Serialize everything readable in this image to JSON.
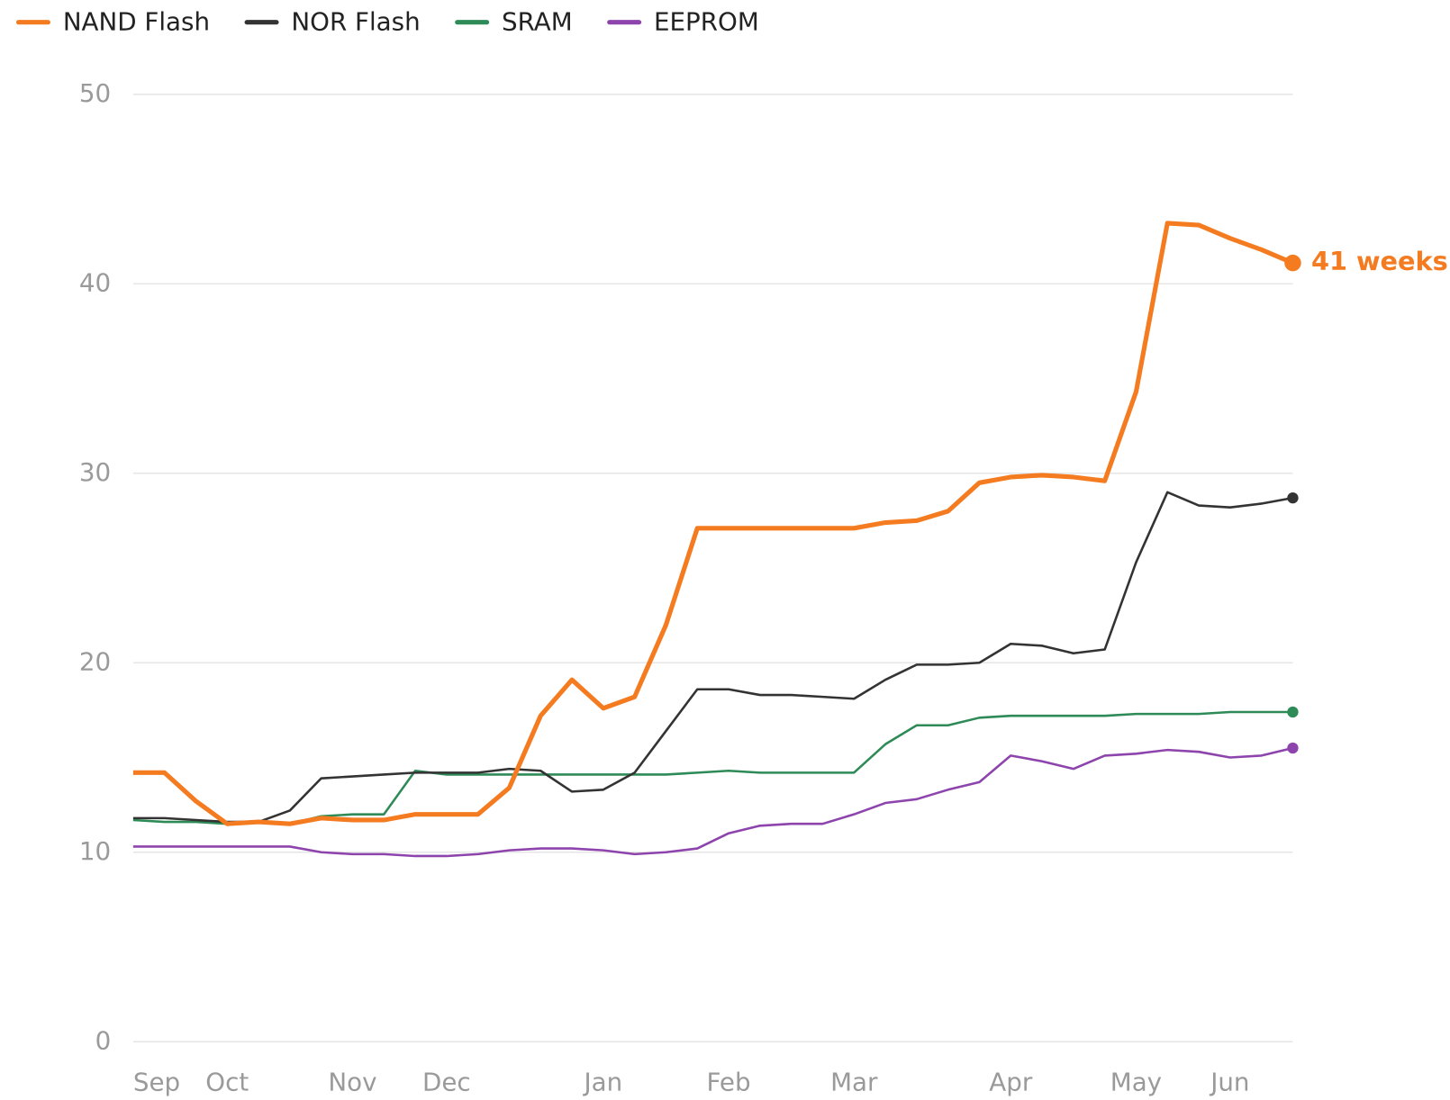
{
  "chart_data": {
    "type": "line",
    "categories": [
      "Sep",
      null,
      null,
      "Oct",
      null,
      null,
      null,
      "Nov",
      null,
      null,
      "Dec",
      null,
      null,
      null,
      null,
      "Jan",
      null,
      null,
      null,
      "Feb",
      null,
      null,
      null,
      "Mar",
      null,
      null,
      null,
      null,
      "Apr",
      null,
      null,
      null,
      "May",
      null,
      null,
      "Jun",
      null,
      null
    ],
    "series": [
      {
        "name": "NAND Flash",
        "color": "#f47b20",
        "values": [
          14.2,
          14.2,
          12.7,
          11.5,
          11.6,
          11.5,
          11.8,
          11.7,
          11.7,
          12.0,
          12.0,
          12.0,
          13.4,
          17.2,
          19.1,
          17.6,
          18.2,
          22.0,
          27.1,
          27.1,
          27.1,
          27.1,
          27.1,
          27.1,
          27.4,
          27.5,
          28.0,
          29.5,
          29.8,
          29.9,
          29.8,
          29.6,
          34.3,
          43.2,
          43.1,
          42.4,
          41.8,
          41.1
        ]
      },
      {
        "name": "NOR Flash",
        "color": "#333333",
        "values": [
          11.8,
          11.8,
          11.7,
          11.6,
          11.6,
          12.2,
          13.9,
          14.0,
          14.1,
          14.2,
          14.2,
          14.2,
          14.4,
          14.3,
          13.2,
          13.3,
          14.2,
          16.4,
          18.6,
          18.6,
          18.3,
          18.3,
          18.2,
          18.1,
          19.1,
          19.9,
          19.9,
          20.0,
          21.0,
          20.9,
          20.5,
          20.7,
          25.3,
          29.0,
          28.3,
          28.2,
          28.4,
          28.7
        ]
      },
      {
        "name": "SRAM",
        "color": "#2e8b57",
        "values": [
          11.7,
          11.6,
          11.6,
          11.5,
          11.6,
          11.5,
          11.9,
          12.0,
          12.0,
          14.3,
          14.1,
          14.1,
          14.1,
          14.1,
          14.1,
          14.1,
          14.1,
          14.1,
          14.2,
          14.3,
          14.2,
          14.2,
          14.2,
          14.2,
          15.7,
          16.7,
          16.7,
          17.1,
          17.2,
          17.2,
          17.2,
          17.2,
          17.3,
          17.3,
          17.3,
          17.4,
          17.4,
          17.4
        ]
      },
      {
        "name": "EEPROM",
        "color": "#8e44ad",
        "values": [
          10.3,
          10.3,
          10.3,
          10.3,
          10.3,
          10.3,
          10.0,
          9.9,
          9.9,
          9.8,
          9.8,
          9.9,
          10.1,
          10.2,
          10.2,
          10.1,
          9.9,
          10.0,
          10.2,
          11.0,
          11.4,
          11.5,
          11.5,
          12.0,
          12.6,
          12.8,
          13.3,
          13.7,
          15.1,
          14.8,
          14.4,
          15.1,
          15.2,
          15.4,
          15.3,
          15.0,
          15.1,
          15.5
        ]
      }
    ],
    "annotation": "41 weeks",
    "ylim": [
      0,
      50
    ],
    "yticks": [
      0,
      10,
      20,
      30,
      40,
      50
    ],
    "grid": true
  }
}
